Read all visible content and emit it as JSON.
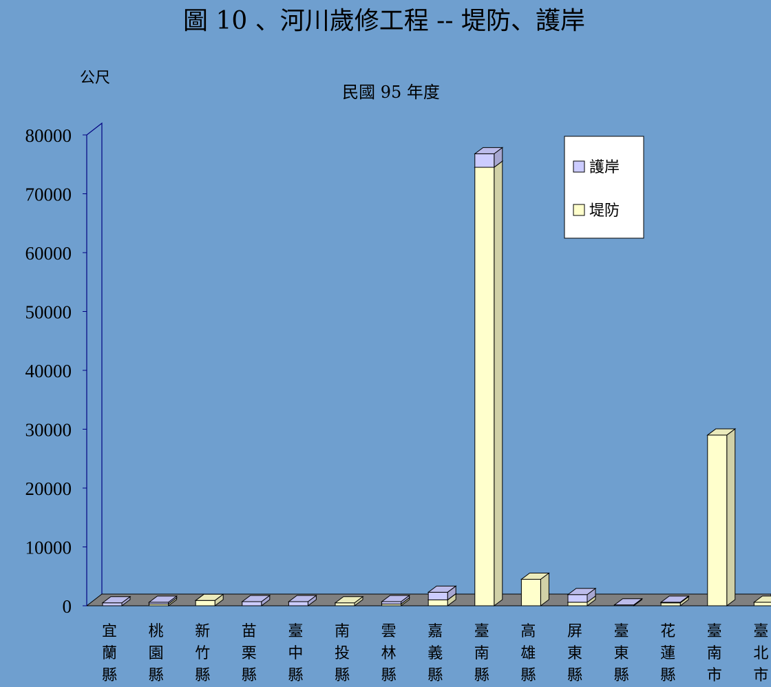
{
  "chart_data": {
    "type": "bar",
    "stacked": true,
    "three_d": true,
    "title": "圖 10 、河川歲修工程 -- 堤防、護岸",
    "subtitle": "民國 95 年度",
    "ylabel": "公尺",
    "ylim": [
      0,
      80000
    ],
    "yticks": [
      0,
      10000,
      20000,
      30000,
      40000,
      50000,
      60000,
      70000,
      80000
    ],
    "grid": false,
    "legend_position": "top-right",
    "categories": [
      "宜蘭縣",
      "桃園縣",
      "新竹縣",
      "苗栗縣",
      "臺中縣",
      "南投縣",
      "雲林縣",
      "嘉義縣",
      "臺南縣",
      "高雄縣",
      "屏東縣",
      "臺東縣",
      "花蓮縣",
      "臺南市",
      "臺北市"
    ],
    "series": [
      {
        "name": "堤防",
        "color": "#ffffcc",
        "values": [
          0,
          300,
          900,
          0,
          0,
          500,
          300,
          1000,
          74500,
          4500,
          600,
          0,
          500,
          29000,
          600
        ]
      },
      {
        "name": "護岸",
        "color": "#ccccff",
        "values": [
          500,
          300,
          0,
          700,
          700,
          0,
          400,
          1300,
          2300,
          0,
          1300,
          150,
          100,
          0,
          0
        ]
      }
    ]
  },
  "colors": {
    "background": "#6f9fcf",
    "floor": "#808080",
    "axis": "#000080",
    "legend_bg": "#ffffff"
  }
}
